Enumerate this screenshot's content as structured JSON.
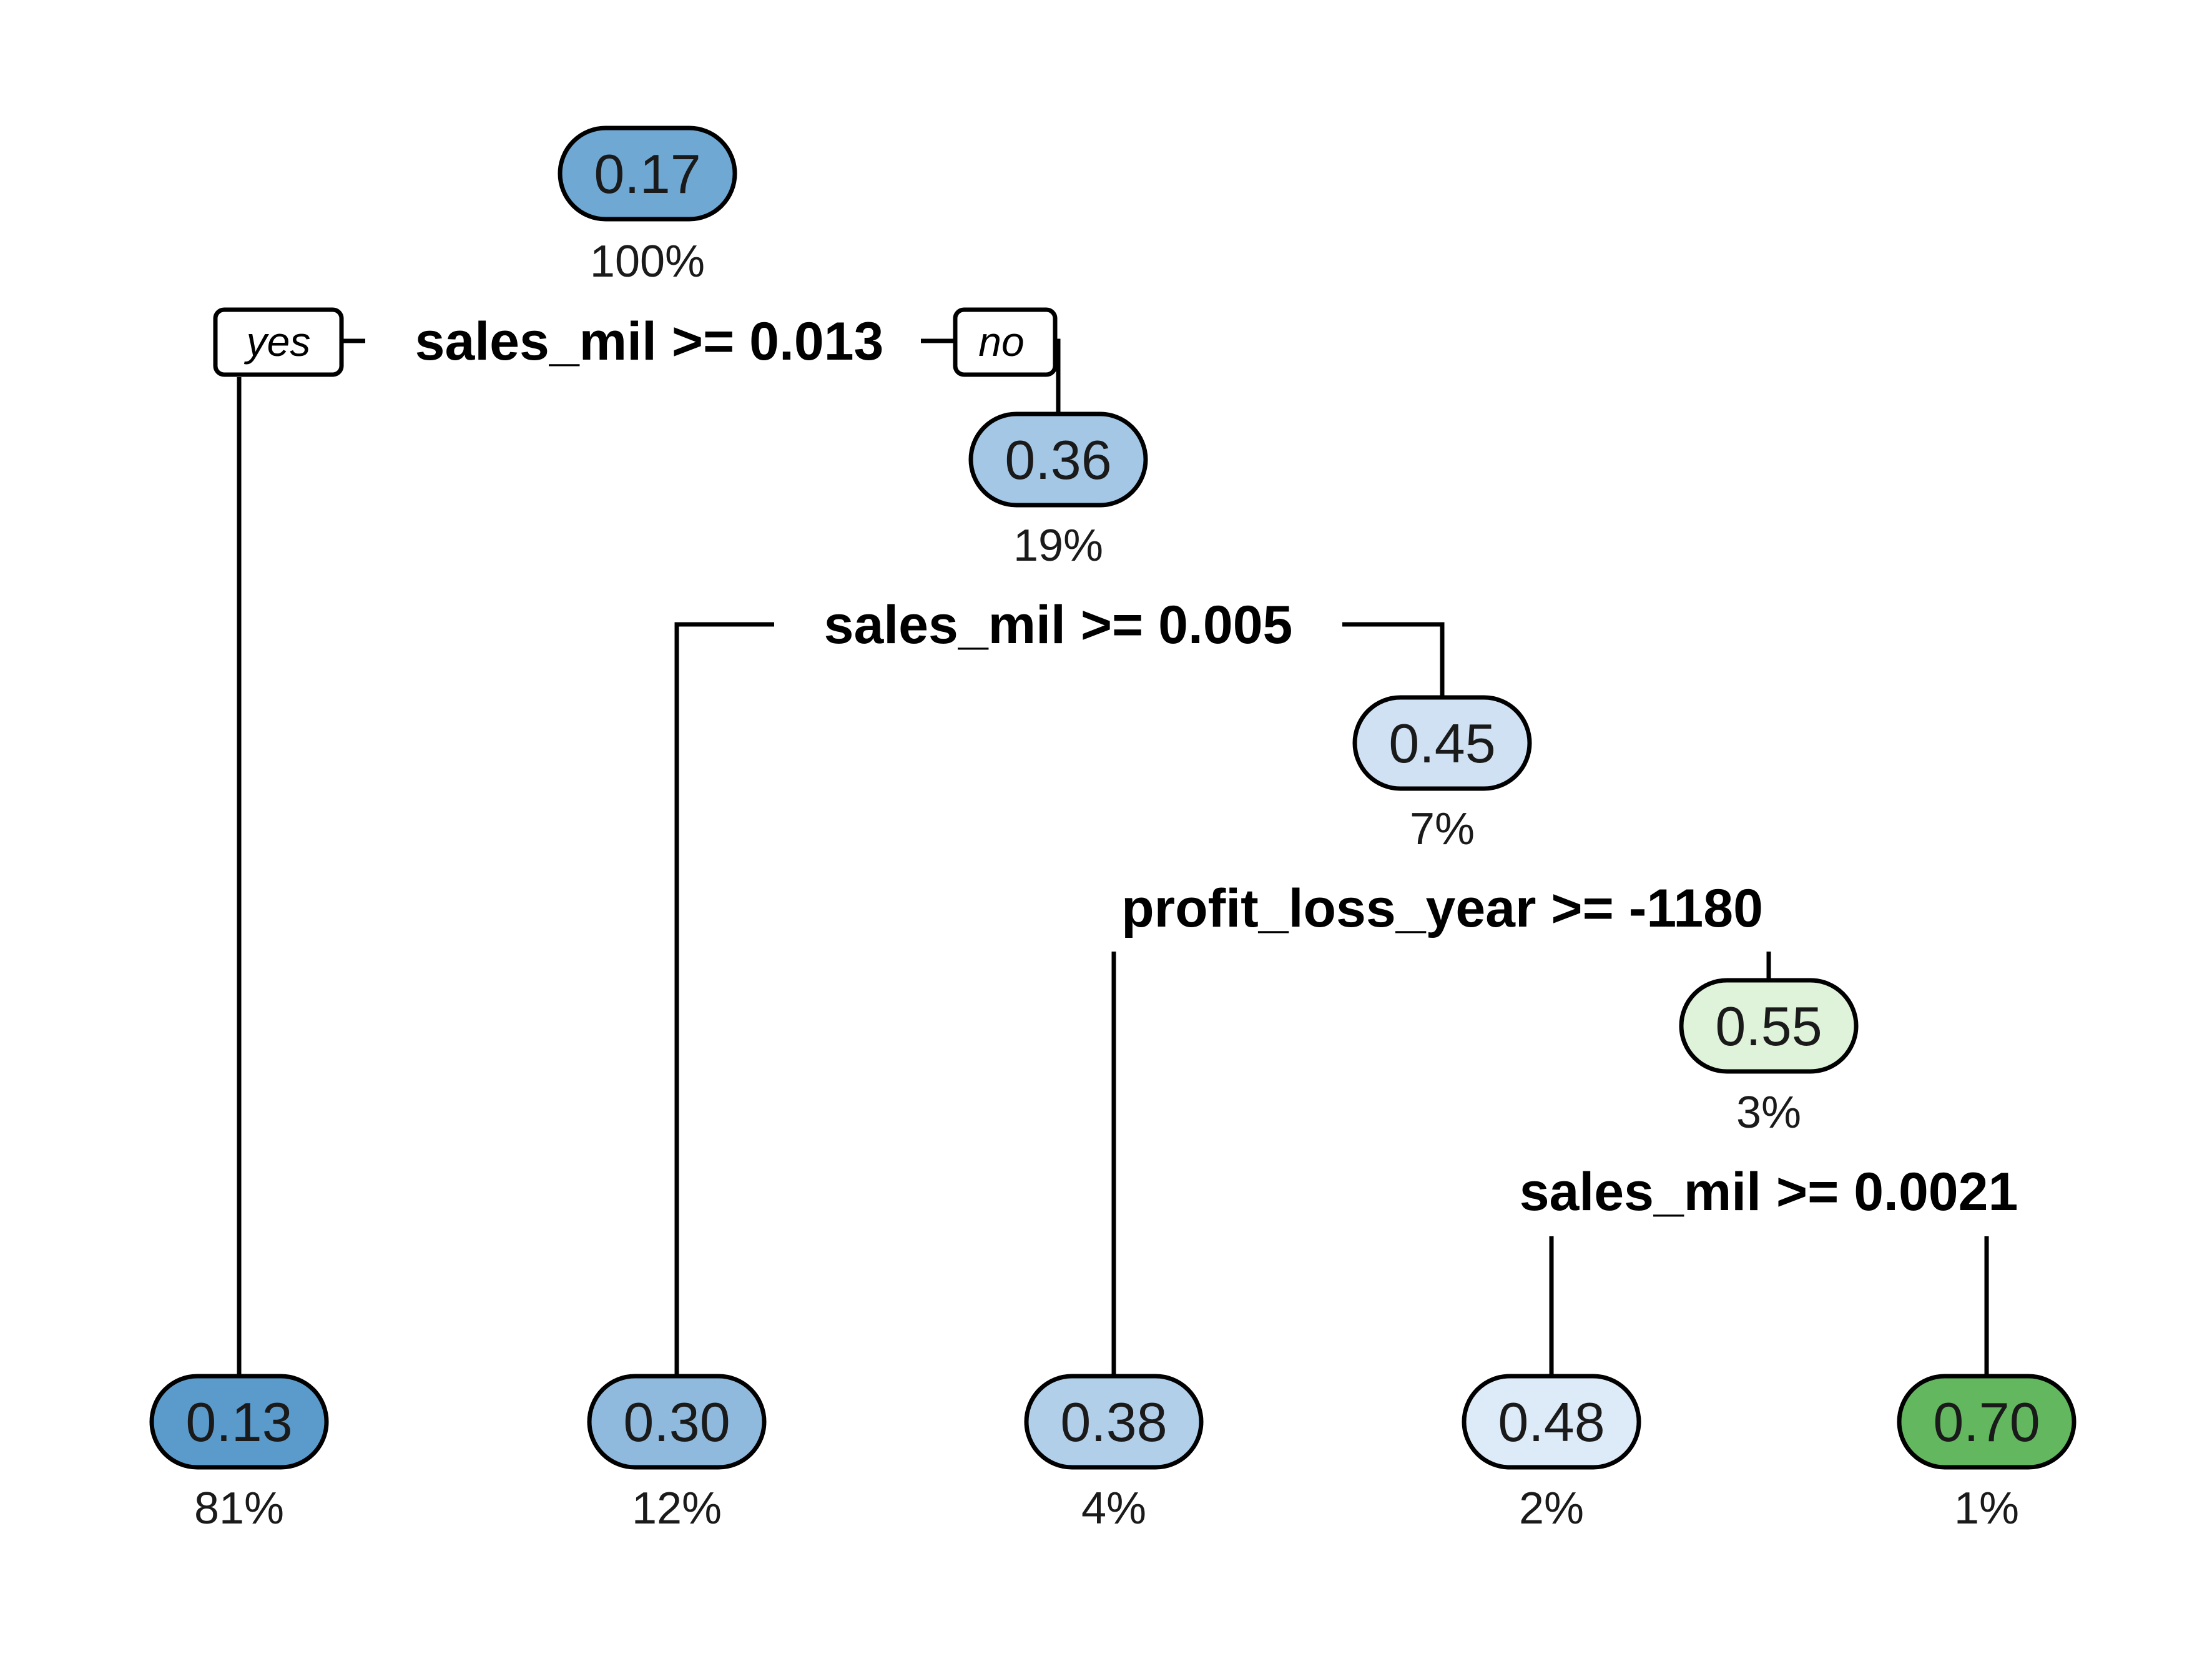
{
  "tree": {
    "nodes": [
      {
        "id": "n1",
        "value": "0.17",
        "percent": "100%",
        "fill": "#6fa8d2"
      },
      {
        "id": "n3",
        "value": "0.36",
        "percent": "19%",
        "fill": "#a3c7e4"
      },
      {
        "id": "n7",
        "value": "0.45",
        "percent": "7%",
        "fill": "#cfe1f2"
      },
      {
        "id": "n15",
        "value": "0.55",
        "percent": "3%",
        "fill": "#dff3da"
      },
      {
        "id": "n2",
        "value": "0.13",
        "percent": "81%",
        "fill": "#5b9bcc"
      },
      {
        "id": "n6",
        "value": "0.30",
        "percent": "12%",
        "fill": "#8fbadd"
      },
      {
        "id": "n14",
        "value": "0.38",
        "percent": "4%",
        "fill": "#b2cfea"
      },
      {
        "id": "n30",
        "value": "0.48",
        "percent": "2%",
        "fill": "#ddeaf7"
      },
      {
        "id": "n31",
        "value": "0.70",
        "percent": "1%",
        "fill": "#62b75f"
      }
    ],
    "splits": [
      {
        "id": "s1",
        "label": "sales_mil >= 0.013"
      },
      {
        "id": "s3",
        "label": "sales_mil >= 0.005"
      },
      {
        "id": "s7",
        "label": "profit_loss_year >= -1180"
      },
      {
        "id": "s15",
        "label": "sales_mil >= 0.0021"
      }
    ],
    "branch_tags": {
      "yes": "yes",
      "no": "no"
    }
  }
}
